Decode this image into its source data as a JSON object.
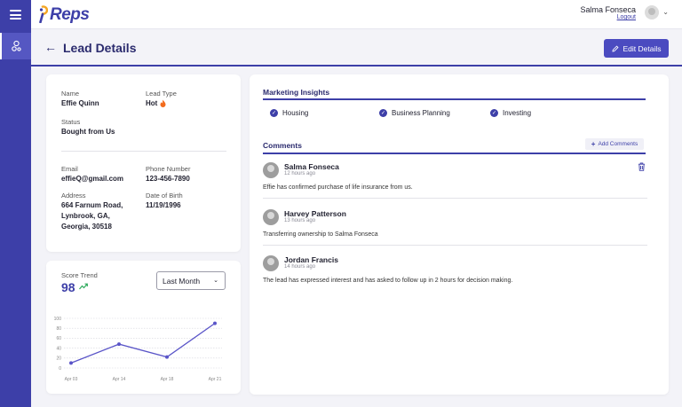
{
  "app": {
    "logo_text": "Reps"
  },
  "user": {
    "name": "Salma Fonseca",
    "logout_label": "Logout"
  },
  "page": {
    "title": "Lead Details",
    "edit_label": "Edit Details"
  },
  "lead": {
    "name_label": "Name",
    "name": "Effie Quinn",
    "lead_type_label": "Lead Type",
    "lead_type": "Hot",
    "status_label": "Status",
    "status": "Bought from Us",
    "email_label": "Email",
    "email": "effieQ@gmail.com",
    "phone_label": "Phone Number",
    "phone": "123-456-7890",
    "address_label": "Address",
    "address_line1": "664 Farnum Road,",
    "address_line2": "Lynbrook, GA,",
    "address_line3": "Georgia, 30518",
    "dob_label": "Date of Birth",
    "dob": "11/19/1996"
  },
  "trend": {
    "title": "Score Trend",
    "score": "98",
    "period": "Last Month"
  },
  "chart_data": {
    "type": "line",
    "categories": [
      "Apr 03",
      "Apr 14",
      "Apr 18",
      "Apr 21"
    ],
    "series": [
      {
        "values": [
          10,
          48,
          22,
          90
        ]
      }
    ],
    "yticks": [
      0,
      20,
      40,
      60,
      80,
      100
    ],
    "ylim": [
      0,
      100
    ],
    "grid": true,
    "color": "#5a55c8"
  },
  "insights": {
    "title": "Marketing Insights",
    "items": [
      "Housing",
      "Business Planning",
      "Investing"
    ]
  },
  "comments": {
    "title": "Comments",
    "add_label": "Add Comments",
    "items": [
      {
        "author": "Salma Fonseca",
        "time": "12 hours ago",
        "text": "Effie has confirmed purchase of life insurance from us."
      },
      {
        "author": "Harvey Patterson",
        "time": "13 hours ago",
        "text": "Transferring ownership to Salma Fonseca"
      },
      {
        "author": "Jordan Francis",
        "time": "14 hours ago",
        "text": "The lead has expressed interest and has asked to follow up in 2 hours for decision making."
      }
    ]
  },
  "colors": {
    "brand": "#3d3fa8",
    "accent": "#4b4bc0",
    "hot": "#f26b1d"
  }
}
